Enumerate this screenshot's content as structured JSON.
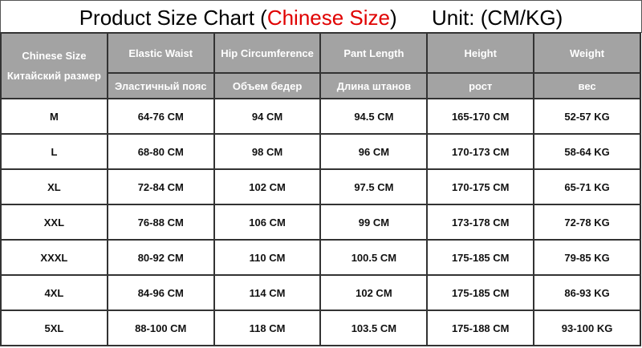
{
  "title": {
    "prefix": "Product Size Chart (",
    "highlight": "Chinese Size",
    "suffix": ")",
    "unit": "Unit: (CM/KG)",
    "highlight_color": "#e00000"
  },
  "header": {
    "size_en": "Chinese Size",
    "size_ru": "Китайский размер",
    "columns": [
      {
        "en": "Elastic Waist",
        "ru": "Эластичный пояс"
      },
      {
        "en": "Hip Circumference",
        "ru": "Объем бедер"
      },
      {
        "en": "Pant Length",
        "ru": "Длина штанов"
      },
      {
        "en": "Height",
        "ru": "рост"
      },
      {
        "en": "Weight",
        "ru": "вес"
      }
    ],
    "bg_color": "#a3a3a3"
  },
  "rows": [
    [
      "M",
      "64-76 CM",
      "94 CM",
      "94.5 CM",
      "165-170 CM",
      "52-57 KG"
    ],
    [
      "L",
      "68-80 CM",
      "98 CM",
      "96 CM",
      "170-173 CM",
      "58-64 KG"
    ],
    [
      "XL",
      "72-84 CM",
      "102 CM",
      "97.5 CM",
      "170-175 CM",
      "65-71 KG"
    ],
    [
      "XXL",
      "76-88 CM",
      "106 CM",
      "99 CM",
      "173-178 CM",
      "72-78 KG"
    ],
    [
      "XXXL",
      "80-92 CM",
      "110 CM",
      "100.5 CM",
      "175-185 CM",
      "79-85 KG"
    ],
    [
      "4XL",
      "84-96 CM",
      "114 CM",
      "102 CM",
      "175-185 CM",
      "86-93 KG"
    ],
    [
      "5XL",
      "88-100 CM",
      "118 CM",
      "103.5 CM",
      "175-188 CM",
      "93-100 KG"
    ]
  ]
}
